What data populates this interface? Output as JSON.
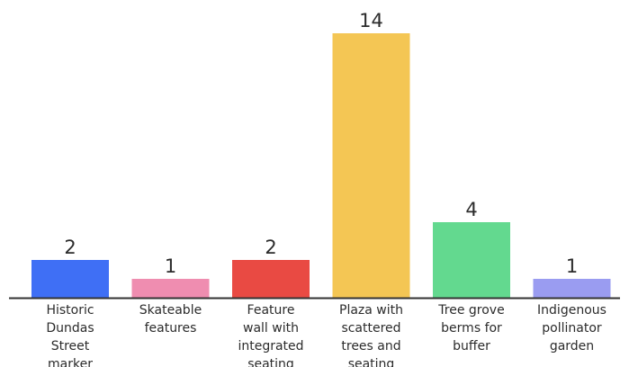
{
  "chart_data": {
    "type": "bar",
    "categories": [
      [
        "Historic",
        "Dundas",
        "Street",
        "marker"
      ],
      [
        "Skateable",
        "features"
      ],
      [
        "Feature",
        "wall with",
        "integrated",
        "seating"
      ],
      [
        "Plaza with",
        "scattered",
        "trees and",
        "seating"
      ],
      [
        "Tree grove",
        "berms for",
        "buffer"
      ],
      [
        "Indigenous",
        "pollinator",
        "garden"
      ]
    ],
    "values": [
      2,
      1,
      2,
      14,
      4,
      1
    ],
    "value_labels": [
      "2",
      "1",
      "2",
      "14",
      "4",
      "1"
    ],
    "colors": [
      "#3f6ff5",
      "#ef8db0",
      "#e94a43",
      "#f4c654",
      "#63d98f",
      "#9a9cf1"
    ],
    "baseline_color": "#333333",
    "ylim": [
      0,
      14
    ],
    "grid": false,
    "legend": "none"
  }
}
